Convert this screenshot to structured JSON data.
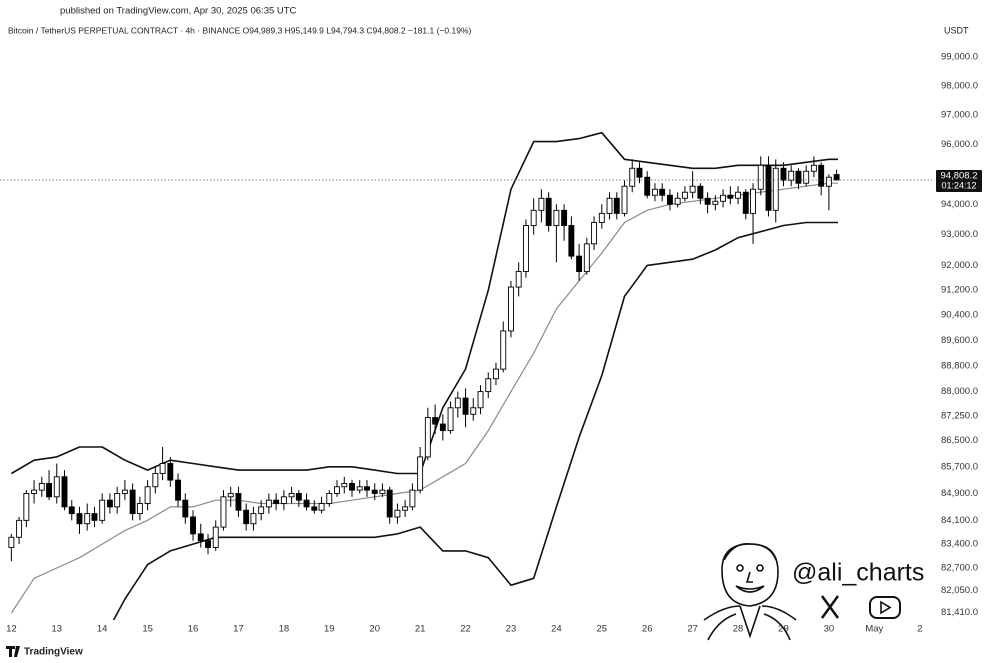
{
  "header": {
    "published": "published on TradingView.com, Apr 30, 2025 06:35 UTC",
    "legend": "Bitcoin / TetherUS PERPETUAL CONTRACT · 4h · BINANCE  O94,989.3  H95,149.9  L94,794.3  C94,808.2  −181.1 (−0.19%)",
    "currency": "USDT"
  },
  "watermark": "@ali_charts",
  "footer": "TradingView",
  "chart_data": {
    "type": "candlestick",
    "xlim": [
      11.75,
      32.05
    ],
    "xticks": [
      12,
      13,
      14,
      15,
      16,
      17,
      18,
      19,
      20,
      21,
      22,
      23,
      24,
      25,
      26,
      27,
      28,
      29,
      30,
      {
        "value": 31,
        "label": "May"
      },
      {
        "value": 32,
        "label": "2"
      }
    ],
    "ylim": [
      81200,
      99950
    ],
    "log_scale": true,
    "grid": false,
    "yticks": [
      {
        "value": 99000,
        "label": "99,000.0"
      },
      {
        "value": 98000,
        "label": "98,000.0"
      },
      {
        "value": 97000,
        "label": "97,000.0"
      },
      {
        "value": 96000,
        "label": "96,000.0"
      },
      {
        "value": 95000,
        "label": "95,000.0"
      },
      {
        "value": 94000,
        "label": "94,000.0"
      },
      {
        "value": 93000,
        "label": "93,000.0"
      },
      {
        "value": 92000,
        "label": "92,000.0"
      },
      {
        "value": 91200,
        "label": "91,200.0"
      },
      {
        "value": 90400,
        "label": "90,400.0"
      },
      {
        "value": 89600,
        "label": "89,600.0"
      },
      {
        "value": 88800,
        "label": "88,800.0"
      },
      {
        "value": 88000,
        "label": "88,000.0"
      },
      {
        "value": 87250,
        "label": "87,250.0"
      },
      {
        "value": 86500,
        "label": "86,500.0"
      },
      {
        "value": 85700,
        "label": "85,700.0"
      },
      {
        "value": 84900,
        "label": "84,900.0"
      },
      {
        "value": 84100,
        "label": "84,100.0"
      },
      {
        "value": 83400,
        "label": "83,400.0"
      },
      {
        "value": 82700,
        "label": "82,700.0"
      },
      {
        "value": 82050,
        "label": "82,050.0"
      },
      {
        "value": 81410,
        "label": "81,410.0"
      }
    ],
    "up_color": "#ffffff",
    "down_color": "#000000",
    "wick_color": "#000000",
    "x": [
      12,
      12.17,
      12.33,
      12.5,
      12.67,
      12.83,
      13,
      13.17,
      13.33,
      13.5,
      13.67,
      13.83,
      14,
      14.17,
      14.33,
      14.5,
      14.67,
      14.83,
      15,
      15.17,
      15.33,
      15.5,
      15.67,
      15.83,
      16,
      16.17,
      16.33,
      16.5,
      16.67,
      16.83,
      17,
      17.17,
      17.33,
      17.5,
      17.67,
      17.83,
      18,
      18.17,
      18.33,
      18.5,
      18.67,
      18.83,
      19,
      19.17,
      19.33,
      19.5,
      19.67,
      19.83,
      20,
      20.17,
      20.33,
      20.5,
      20.67,
      20.83,
      21,
      21.17,
      21.33,
      21.5,
      21.67,
      21.83,
      22,
      22.17,
      22.33,
      22.5,
      22.67,
      22.83,
      23,
      23.17,
      23.33,
      23.5,
      23.67,
      23.83,
      24,
      24.17,
      24.33,
      24.5,
      24.67,
      24.83,
      25,
      25.17,
      25.33,
      25.5,
      25.67,
      25.83,
      26,
      26.17,
      26.33,
      26.5,
      26.67,
      26.83,
      27,
      27.17,
      27.33,
      27.5,
      27.67,
      27.83,
      28,
      28.17,
      28.33,
      28.5,
      28.67,
      28.83,
      29,
      29.17,
      29.33,
      29.5,
      29.67,
      29.83,
      30,
      30.17
    ],
    "ohlc": [
      [
        83300,
        83700,
        82900,
        83600
      ],
      [
        83600,
        84200,
        83400,
        84100
      ],
      [
        84100,
        85000,
        83900,
        84900
      ],
      [
        84900,
        85300,
        84600,
        85000
      ],
      [
        85000,
        85400,
        84800,
        85200
      ],
      [
        85200,
        85600,
        84700,
        84800
      ],
      [
        84800,
        85800,
        84600,
        85400
      ],
      [
        85400,
        85600,
        84400,
        84500
      ],
      [
        84500,
        84700,
        84100,
        84300
      ],
      [
        84300,
        84500,
        83700,
        84000
      ],
      [
        84000,
        84600,
        83800,
        84300
      ],
      [
        84300,
        84500,
        83900,
        84100
      ],
      [
        84100,
        84900,
        84000,
        84700
      ],
      [
        84700,
        84900,
        84300,
        84500
      ],
      [
        84500,
        85100,
        84300,
        84900
      ],
      [
        84900,
        85300,
        84700,
        85000
      ],
      [
        85000,
        85200,
        84100,
        84300
      ],
      [
        84300,
        84800,
        84100,
        84600
      ],
      [
        84600,
        85300,
        84400,
        85100
      ],
      [
        85100,
        85700,
        84900,
        85500
      ],
      [
        85500,
        86300,
        85300,
        85800
      ],
      [
        85800,
        86000,
        85100,
        85300
      ],
      [
        85300,
        85500,
        84500,
        84700
      ],
      [
        84700,
        84900,
        84000,
        84200
      ],
      [
        84200,
        84400,
        83500,
        83700
      ],
      [
        83700,
        84000,
        83300,
        83500
      ],
      [
        83500,
        83700,
        83100,
        83300
      ],
      [
        83300,
        84100,
        83200,
        83900
      ],
      [
        83900,
        85000,
        83800,
        84800
      ],
      [
        84800,
        85100,
        84500,
        84900
      ],
      [
        84900,
        85100,
        84200,
        84400
      ],
      [
        84400,
        84600,
        83800,
        84000
      ],
      [
        84000,
        84500,
        83800,
        84300
      ],
      [
        84300,
        84700,
        84100,
        84500
      ],
      [
        84500,
        84900,
        84300,
        84700
      ],
      [
        84700,
        84900,
        84400,
        84600
      ],
      [
        84600,
        85000,
        84400,
        84800
      ],
      [
        84800,
        85100,
        84600,
        84900
      ],
      [
        84900,
        85000,
        84500,
        84700
      ],
      [
        84700,
        84900,
        84400,
        84500
      ],
      [
        84500,
        84700,
        84300,
        84400
      ],
      [
        84400,
        84800,
        84300,
        84600
      ],
      [
        84600,
        85000,
        84500,
        84900
      ],
      [
        84900,
        85300,
        84800,
        85100
      ],
      [
        85100,
        85400,
        84900,
        85200
      ],
      [
        85200,
        85300,
        84800,
        85000
      ],
      [
        85000,
        85300,
        84900,
        85100
      ],
      [
        85100,
        85300,
        84800,
        85000
      ],
      [
        85000,
        85200,
        84700,
        84900
      ],
      [
        84900,
        85200,
        84800,
        85000
      ],
      [
        85000,
        85100,
        84000,
        84200
      ],
      [
        84200,
        84600,
        84000,
        84400
      ],
      [
        84400,
        84700,
        84200,
        84500
      ],
      [
        84500,
        85200,
        84400,
        85000
      ],
      [
        85000,
        86300,
        84900,
        86000
      ],
      [
        86000,
        87500,
        85900,
        87200
      ],
      [
        87200,
        87600,
        86700,
        87000
      ],
      [
        87000,
        87300,
        86500,
        86800
      ],
      [
        86800,
        87700,
        86700,
        87500
      ],
      [
        87500,
        88000,
        87200,
        87800
      ],
      [
        87800,
        88100,
        86900,
        87300
      ],
      [
        87300,
        87800,
        87100,
        87500
      ],
      [
        87500,
        88200,
        87300,
        88000
      ],
      [
        88000,
        88600,
        87800,
        88400
      ],
      [
        88400,
        88900,
        88200,
        88700
      ],
      [
        88700,
        90200,
        88600,
        89900
      ],
      [
        89900,
        91500,
        89700,
        91300
      ],
      [
        91300,
        92100,
        91000,
        91800
      ],
      [
        91800,
        93500,
        91600,
        93300
      ],
      [
        93300,
        94200,
        93000,
        93800
      ],
      [
        93800,
        94500,
        93400,
        94200
      ],
      [
        94200,
        94400,
        93100,
        93300
      ],
      [
        93300,
        94000,
        92100,
        93800
      ],
      [
        93800,
        94000,
        92800,
        93300
      ],
      [
        93300,
        93600,
        92200,
        92300
      ],
      [
        92300,
        92700,
        91500,
        91800
      ],
      [
        91800,
        92900,
        91700,
        92700
      ],
      [
        92700,
        93600,
        92500,
        93400
      ],
      [
        93400,
        94000,
        93200,
        93700
      ],
      [
        93700,
        94400,
        93500,
        94200
      ],
      [
        94200,
        94400,
        93500,
        93700
      ],
      [
        93700,
        94800,
        93600,
        94600
      ],
      [
        94600,
        95500,
        94400,
        95200
      ],
      [
        95200,
        95400,
        94700,
        94900
      ],
      [
        94900,
        95100,
        94200,
        94300
      ],
      [
        94300,
        94700,
        94100,
        94500
      ],
      [
        94500,
        94700,
        94100,
        94300
      ],
      [
        94300,
        94500,
        93800,
        94000
      ],
      [
        94000,
        94400,
        93900,
        94200
      ],
      [
        94200,
        94600,
        94100,
        94400
      ],
      [
        94400,
        95100,
        94200,
        94600
      ],
      [
        94600,
        94700,
        94000,
        94200
      ],
      [
        94200,
        94400,
        93700,
        94000
      ],
      [
        94000,
        94300,
        93800,
        94100
      ],
      [
        94100,
        94500,
        93900,
        94300
      ],
      [
        94300,
        94600,
        94000,
        94200
      ],
      [
        94200,
        94600,
        94000,
        94400
      ],
      [
        94400,
        94500,
        93500,
        93700
      ],
      [
        93700,
        94700,
        92700,
        94500
      ],
      [
        94500,
        95600,
        94300,
        95300
      ],
      [
        95300,
        95600,
        93600,
        93800
      ],
      [
        93800,
        95500,
        93400,
        95200
      ],
      [
        95200,
        95400,
        94600,
        94800
      ],
      [
        94800,
        95300,
        94600,
        95100
      ],
      [
        95100,
        95200,
        94500,
        94700
      ],
      [
        94700,
        95300,
        94600,
        95100
      ],
      [
        95100,
        95600,
        94900,
        95300
      ],
      [
        95300,
        95400,
        94300,
        94600
      ],
      [
        94600,
        95000,
        93800,
        94900
      ],
      [
        94989.3,
        95149.9,
        94794.3,
        94808.2
      ]
    ],
    "bands": {
      "band_color": "#111111",
      "basis_color": "#8a8a8a",
      "x": [
        12,
        12.5,
        13,
        13.5,
        14,
        14.5,
        15,
        15.5,
        16,
        16.5,
        17,
        17.5,
        18,
        18.5,
        19,
        19.5,
        20,
        20.5,
        21,
        21.5,
        22,
        22.5,
        23,
        23.5,
        24,
        24.5,
        25,
        25.5,
        26,
        26.5,
        27,
        27.5,
        28,
        28.5,
        29,
        29.5,
        30,
        30.2
      ],
      "upper": [
        85500,
        85900,
        86000,
        86300,
        86300,
        85900,
        85600,
        85900,
        85800,
        85700,
        85600,
        85600,
        85600,
        85600,
        85700,
        85700,
        85600,
        85500,
        85500,
        87500,
        88700,
        91200,
        94500,
        96100,
        96100,
        96200,
        96400,
        95500,
        95400,
        95300,
        95200,
        95200,
        95300,
        95300,
        95300,
        95400,
        95500,
        95500
      ],
      "middle": [
        81400,
        82400,
        82700,
        83000,
        83400,
        83800,
        84100,
        84500,
        84500,
        84700,
        84700,
        84600,
        84600,
        84600,
        84600,
        84700,
        84800,
        84900,
        85000,
        85400,
        85800,
        86800,
        88000,
        89200,
        90600,
        91500,
        92400,
        93400,
        93800,
        94000,
        94100,
        94200,
        94300,
        94400,
        94500,
        94600,
        94700,
        94700
      ],
      "lower": [
        null,
        null,
        null,
        null,
        80600,
        81800,
        82800,
        83200,
        83400,
        83600,
        83600,
        83600,
        83600,
        83600,
        83600,
        83600,
        83600,
        83700,
        83900,
        83200,
        83200,
        83000,
        82200,
        82400,
        84500,
        86600,
        88500,
        91000,
        92000,
        92100,
        92200,
        92500,
        92900,
        93100,
        93300,
        93400,
        93400,
        93400
      ]
    },
    "last_price": {
      "value": 94808.2,
      "label": "94,808.2"
    },
    "countdown": "01:24:12"
  }
}
